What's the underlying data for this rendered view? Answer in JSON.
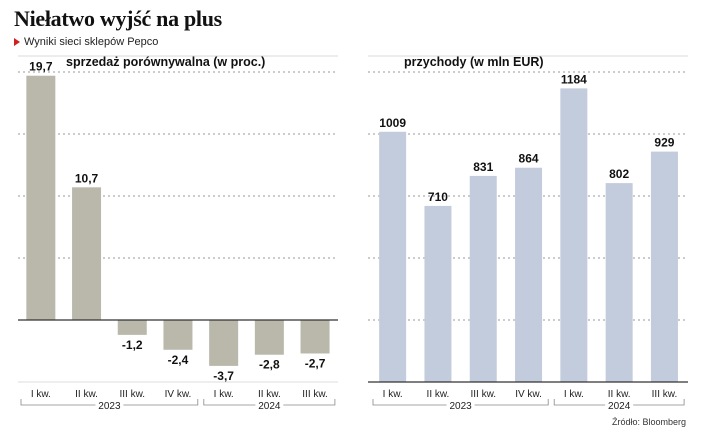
{
  "header": {
    "title": "Niełatwo wyjść na plus",
    "subtitle": "Wyniki sieci sklepów Pepco",
    "source": "Źródło: Bloomberg"
  },
  "colors": {
    "left_bars": "#b9b8ab",
    "right_bars": "#c3ccdc",
    "accent": "#d21f1f",
    "grid": "#777777"
  },
  "chart_data": [
    {
      "type": "bar",
      "title": "sprzedaż porównywalna (w proc.)",
      "categories": [
        "I kw.",
        "II kw.",
        "III kw.",
        "IV kw.",
        "I kw.",
        "II kw.",
        "III kw."
      ],
      "groups": [
        {
          "label": "2023",
          "count": 4
        },
        {
          "label": "2024",
          "count": 3
        }
      ],
      "values": [
        19.7,
        10.7,
        -1.2,
        -2.4,
        -3.7,
        -2.8,
        -2.7
      ],
      "value_labels": [
        "19,7",
        "10,7",
        "-1,2",
        "-2,4",
        "-3,7",
        "-2,8",
        "-2,7"
      ],
      "ylim": [
        -5,
        20
      ],
      "grid": true
    },
    {
      "type": "bar",
      "title": "przychody (w mln EUR)",
      "categories": [
        "I kw.",
        "II kw.",
        "III kw.",
        "IV kw.",
        "I kw.",
        "II kw.",
        "III kw."
      ],
      "groups": [
        {
          "label": "2023",
          "count": 4
        },
        {
          "label": "2024",
          "count": 3
        }
      ],
      "values": [
        1009,
        710,
        831,
        864,
        1184,
        802,
        929
      ],
      "value_labels": [
        "1009",
        "710",
        "831",
        "864",
        "1184",
        "802",
        "929"
      ],
      "ylim": [
        0,
        1250
      ],
      "grid": true
    }
  ]
}
